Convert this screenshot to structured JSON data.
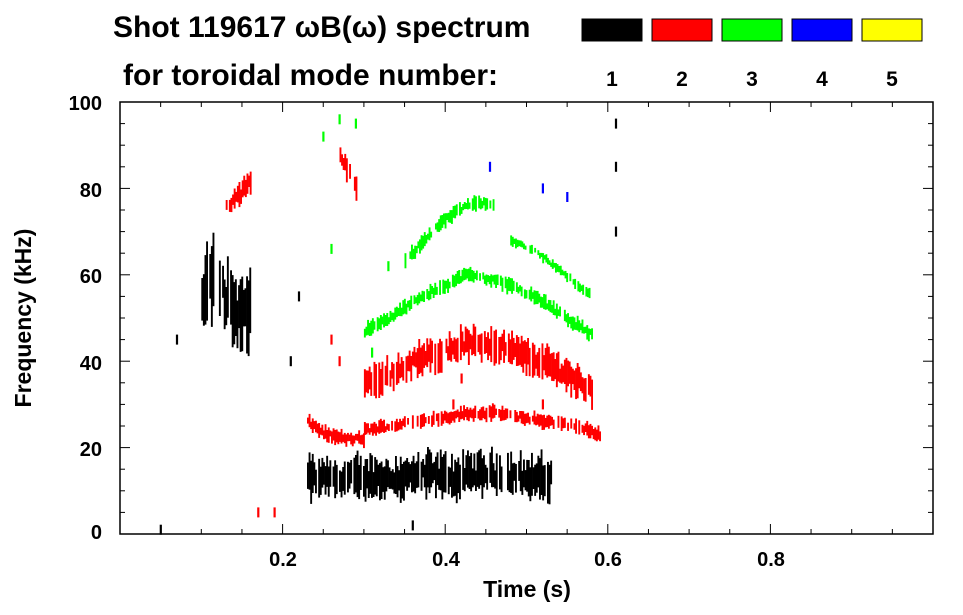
{
  "chart_data": {
    "type": "heatmap",
    "title_line1": "Shot 119617 ωB(ω) spectrum",
    "title_line2": "for toroidal mode number:",
    "xlabel": "Time (s)",
    "ylabel": "Frequency (kHz)",
    "xlim": [
      0.0,
      1.0
    ],
    "ylim": [
      0,
      100
    ],
    "x_ticks": [
      {
        "value": 0.2,
        "label": "0.2"
      },
      {
        "value": 0.4,
        "label": "0.4"
      },
      {
        "value": 0.6,
        "label": "0.6"
      },
      {
        "value": 0.8,
        "label": "0.8"
      }
    ],
    "y_ticks": [
      {
        "value": 0,
        "label": "0"
      },
      {
        "value": 20,
        "label": "20"
      },
      {
        "value": 40,
        "label": "40"
      },
      {
        "value": 60,
        "label": "60"
      },
      {
        "value": 80,
        "label": "80"
      },
      {
        "value": 100,
        "label": "100"
      }
    ],
    "legend": [
      {
        "label": "1",
        "color": "#000000"
      },
      {
        "label": "2",
        "color": "#ff0000"
      },
      {
        "label": "3",
        "color": "#00ff00"
      },
      {
        "label": "4",
        "color": "#0000ff"
      },
      {
        "label": "5",
        "color": "#ffff00"
      }
    ],
    "series": [
      {
        "name": "n=1",
        "color": "#000000",
        "bands": [
          {
            "t_start": 0.23,
            "t_end": 0.53,
            "f_center": [
              13,
              13,
              13,
              13,
              13,
              14,
              13,
              14,
              14,
              13,
              13
            ],
            "width": 9
          },
          {
            "t_start": 0.1,
            "t_end": 0.16,
            "f_center": [
              55,
              60,
              57,
              53,
              50,
              52
            ],
            "width": 16
          }
        ],
        "spots": [
          [
            0.61,
            95
          ],
          [
            0.61,
            85
          ],
          [
            0.61,
            70
          ],
          [
            0.22,
            55
          ],
          [
            0.21,
            40
          ],
          [
            0.07,
            45
          ],
          [
            0.05,
            1
          ],
          [
            0.355,
            12
          ],
          [
            0.36,
            2
          ]
        ]
      },
      {
        "name": "n=2",
        "color": "#ff0000",
        "bands": [
          {
            "t_start": 0.23,
            "t_end": 0.3,
            "f_center": [
              26,
              23,
              22,
              22
            ],
            "width": 3
          },
          {
            "t_start": 0.3,
            "t_end": 0.59,
            "f_center": [
              24,
              25,
              26,
              27,
              28,
              28,
              27,
              26,
              25,
              23
            ],
            "width": 3
          },
          {
            "t_start": 0.3,
            "t_end": 0.58,
            "f_center": [
              35,
              37,
              40,
              42,
              44,
              44,
              42,
              40,
              37,
              33
            ],
            "width": 7
          },
          {
            "t_start": 0.27,
            "t_end": 0.29,
            "f_center": [
              88,
              84,
              80
            ],
            "width": 5
          },
          {
            "t_start": 0.13,
            "t_end": 0.16,
            "f_center": [
              76,
              78,
              82
            ],
            "width": 5
          }
        ],
        "spots": [
          [
            0.26,
            45
          ],
          [
            0.27,
            40
          ],
          [
            0.17,
            5
          ],
          [
            0.19,
            5
          ],
          [
            0.41,
            30
          ],
          [
            0.52,
            30
          ],
          [
            0.42,
            36
          ]
        ]
      },
      {
        "name": "n=3",
        "color": "#00ff00",
        "bands": [
          {
            "t_start": 0.35,
            "t_end": 0.46,
            "f_center": [
              63,
              68,
              72,
              75,
              77,
              76
            ],
            "width": 3
          },
          {
            "t_start": 0.3,
            "t_end": 0.58,
            "f_center": [
              47,
              50,
              54,
              57,
              60,
              59,
              57,
              54,
              50,
              46
            ],
            "width": 3
          },
          {
            "t_start": 0.48,
            "t_end": 0.58,
            "f_center": [
              68,
              65,
              60,
              55
            ],
            "width": 2
          }
        ],
        "spots": [
          [
            0.27,
            96
          ],
          [
            0.29,
            95
          ],
          [
            0.26,
            66
          ],
          [
            0.33,
            62
          ],
          [
            0.25,
            92
          ],
          [
            0.31,
            42
          ]
        ]
      },
      {
        "name": "n=4",
        "color": "#0000ff",
        "bands": [],
        "spots": [
          [
            0.455,
            85
          ],
          [
            0.52,
            80
          ],
          [
            0.55,
            78
          ]
        ]
      },
      {
        "name": "n=5",
        "color": "#ffff00",
        "bands": [],
        "spots": []
      }
    ]
  }
}
